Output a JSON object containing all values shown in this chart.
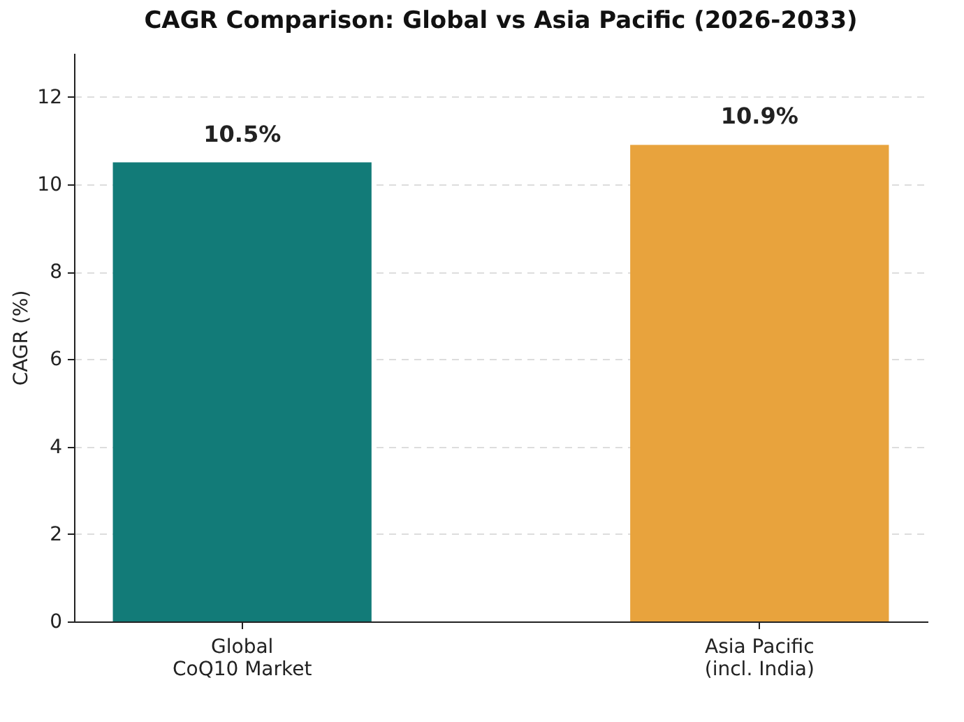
{
  "chart_data": {
    "type": "bar",
    "title": "CAGR Comparison: Global vs Asia Pacific (2026-2033)",
    "ylabel": "CAGR (%)",
    "categories": [
      "Global\nCoQ10 Market",
      "Asia Pacific\n(incl. India)"
    ],
    "values": [
      10.5,
      10.9
    ],
    "colors": [
      "#127b78",
      "#e8a33d"
    ],
    "value_labels": [
      "10.5%",
      "10.9%"
    ],
    "ylim": [
      0,
      13
    ],
    "yticks": [
      0,
      2,
      4,
      6,
      8,
      10,
      12
    ],
    "grid": "y",
    "legend": false
  }
}
